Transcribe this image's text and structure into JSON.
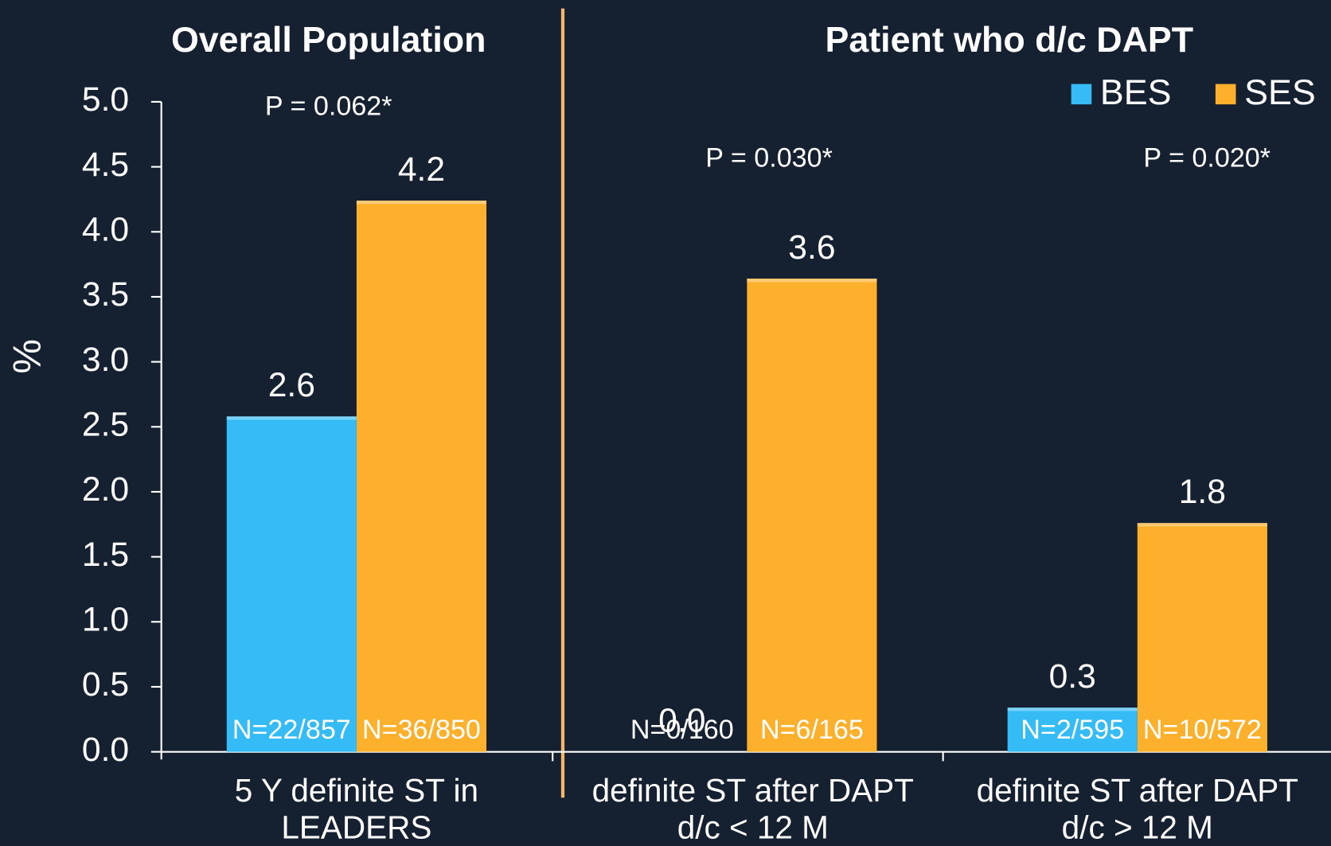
{
  "chart_data": {
    "type": "bar",
    "section_titles": [
      "Overall Population",
      "Patient who d/c DAPT"
    ],
    "ylabel": "%",
    "categories": [
      "5 Y definite ST in\nLEADERS",
      "definite ST after DAPT\nd/c < 12 M",
      "definite ST after DAPT\nd/c > 12 M"
    ],
    "p_labels": [
      "P = 0.062*",
      "P = 0.030*",
      "P = 0.020*"
    ],
    "series": [
      {
        "name": "BES",
        "color": "#35bbf6",
        "values": [
          2.58,
          0,
          0.34
        ],
        "value_labels": [
          "2.6",
          "0.0",
          "0.3"
        ],
        "n_labels": [
          "N=22/857",
          "N=0/160",
          "N=2/595"
        ]
      },
      {
        "name": "SES",
        "color": "#fcb02b",
        "values": [
          4.24,
          3.64,
          1.76
        ],
        "value_labels": [
          "4.2",
          "3.6",
          "1.8"
        ],
        "n_labels": [
          "N=36/850",
          "N=6/165",
          "N=10/572"
        ]
      }
    ],
    "ylim": [
      0,
      5
    ],
    "yticks": [
      {
        "value": 0,
        "label": "0.0"
      },
      {
        "value": 0.5,
        "label": "0.5"
      },
      {
        "value": 1,
        "label": "1.0"
      },
      {
        "value": 1.5,
        "label": "1.5"
      },
      {
        "value": 2,
        "label": "2.0"
      },
      {
        "value": 2.5,
        "label": "2.5"
      },
      {
        "value": 3,
        "label": "3.0"
      },
      {
        "value": 3.5,
        "label": "3.5"
      },
      {
        "value": 4,
        "label": "4.0"
      },
      {
        "value": 4.5,
        "label": "4.5"
      },
      {
        "value": 5,
        "label": "5.0"
      }
    ]
  }
}
